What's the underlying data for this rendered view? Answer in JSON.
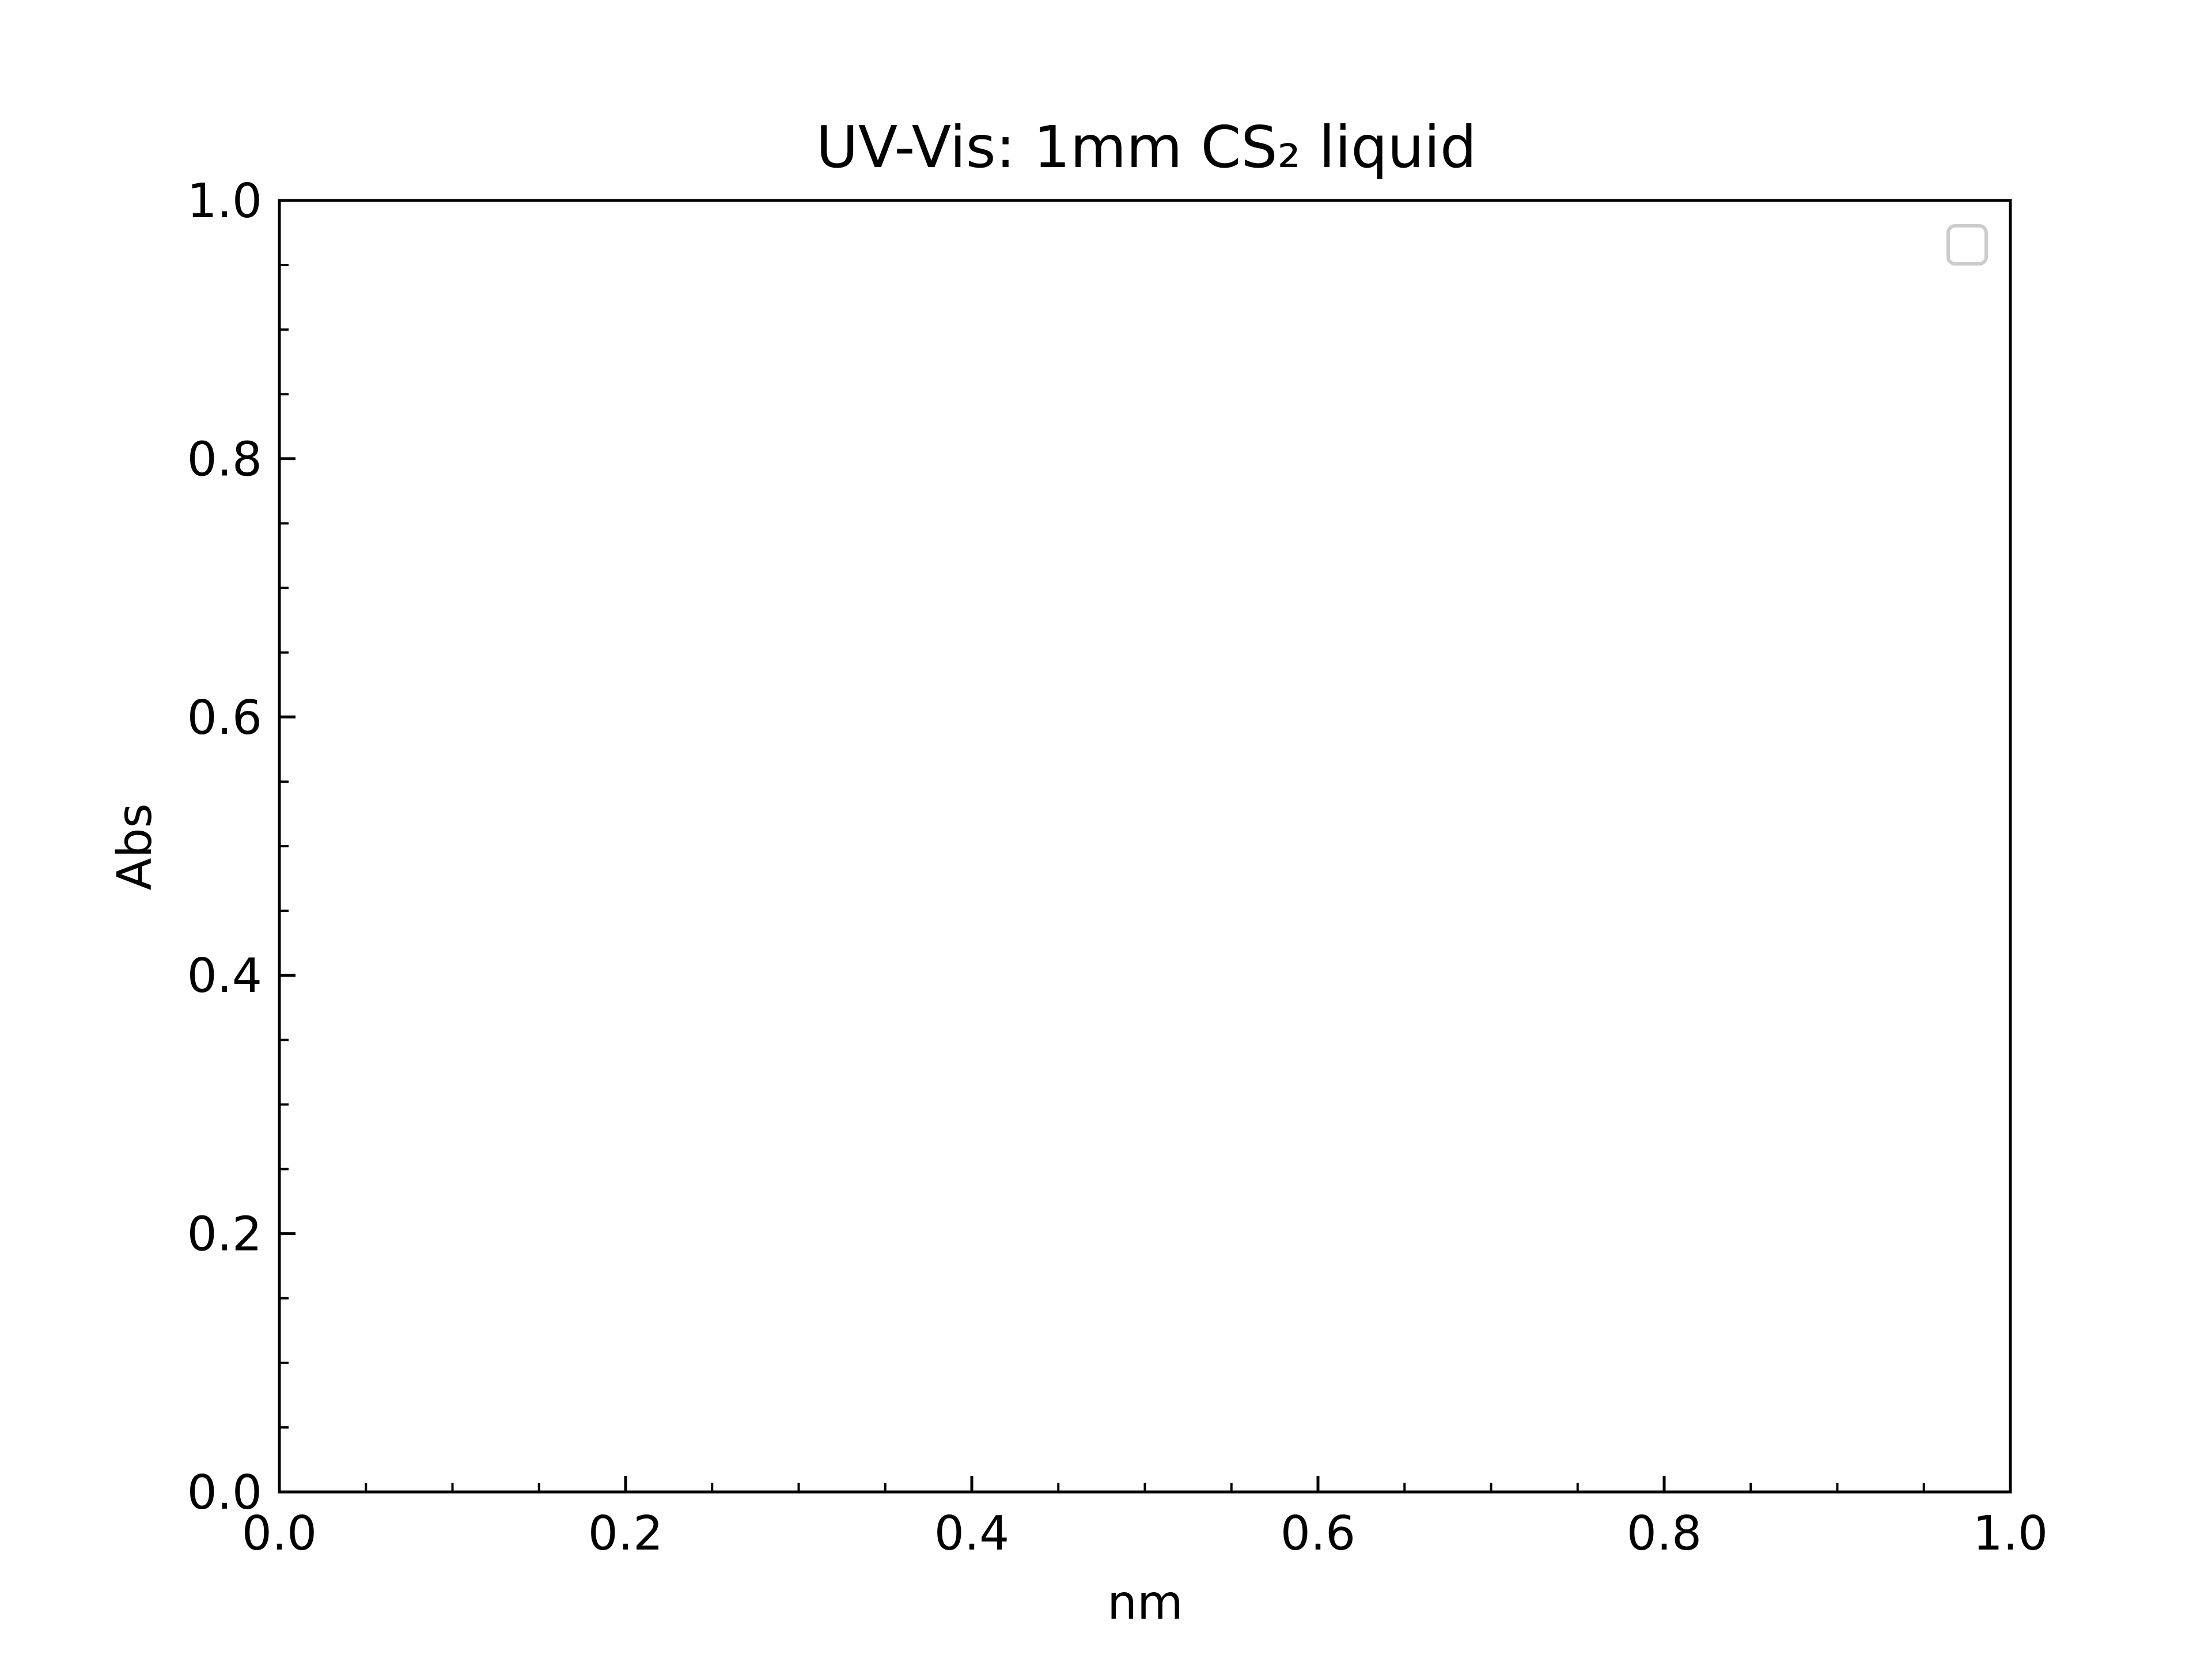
{
  "chart_data": {
    "type": "line",
    "title": "UV-Vis: 1mm CS₂ liquid",
    "xlabel": "nm",
    "ylabel": "Abs",
    "xlim": [
      0.0,
      1.0
    ],
    "ylim": [
      0.0,
      1.0
    ],
    "x_ticks": [
      "0.0",
      "0.2",
      "0.4",
      "0.6",
      "0.8",
      "1.0"
    ],
    "y_ticks": [
      "0.0",
      "0.2",
      "0.4",
      "0.6",
      "0.8",
      "1.0"
    ],
    "x_tick_values": [
      0.0,
      0.2,
      0.4,
      0.6,
      0.8,
      1.0
    ],
    "y_tick_values": [
      0.0,
      0.2,
      0.4,
      0.6,
      0.8,
      1.0
    ],
    "x_minor_step": 0.05,
    "y_minor_step": 0.05,
    "tick_direction": "in",
    "grid": false,
    "legend": {
      "placement": "upper right",
      "entries": []
    },
    "series": []
  },
  "colors": {
    "axes": "#000000",
    "background": "#ffffff",
    "legend_border": "#cccccc"
  }
}
